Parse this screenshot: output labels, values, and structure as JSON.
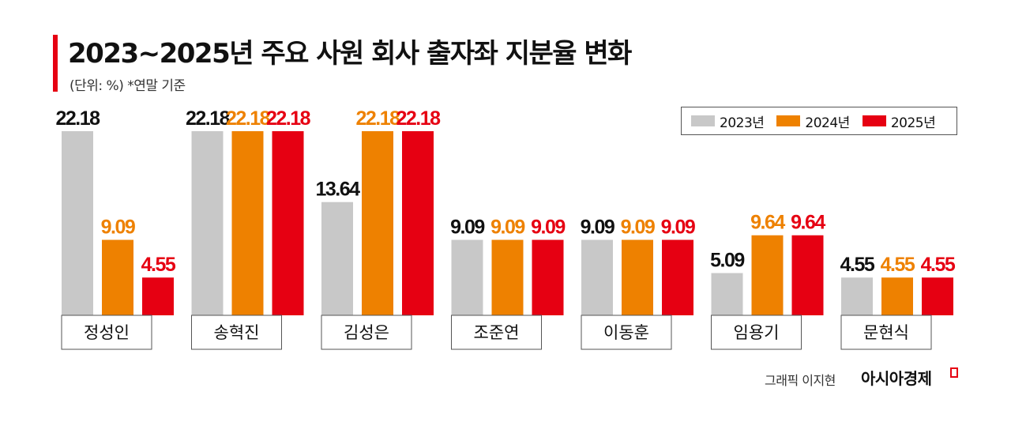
{
  "header": {
    "title": "2023~2025년 주요 사원 회사 출자좌 지분율 변화",
    "subtitle": "(단위: %)  *연말 기준"
  },
  "legend": {
    "items": [
      {
        "label": "2023년",
        "color": "#c8c8c8"
      },
      {
        "label": "2024년",
        "color": "#ee8100"
      },
      {
        "label": "2025년",
        "color": "#e60012"
      }
    ]
  },
  "footer": {
    "credit": "그래픽 이지현",
    "brand": "아시아경제"
  },
  "chart_data": {
    "type": "bar",
    "categories": [
      "정성인",
      "송혁진",
      "김성은",
      "조준연",
      "이동훈",
      "임용기",
      "문현식"
    ],
    "series": [
      {
        "name": "2023년",
        "color": "#c8c8c8",
        "label_color": "#111111",
        "values": [
          22.18,
          22.18,
          13.64,
          9.09,
          9.09,
          5.09,
          4.55
        ]
      },
      {
        "name": "2024년",
        "color": "#ee8100",
        "label_color": "#ee8100",
        "values": [
          9.09,
          22.18,
          22.18,
          9.09,
          9.09,
          9.64,
          4.55
        ]
      },
      {
        "name": "2025년",
        "color": "#e60012",
        "label_color": "#e60012",
        "values": [
          4.55,
          22.18,
          22.18,
          9.09,
          9.09,
          9.64,
          4.55
        ]
      }
    ],
    "data_labels": [
      [
        "22.18",
        "9.09",
        "4.55"
      ],
      [
        "22.18",
        "22.18",
        "22.18"
      ],
      [
        "13.64",
        "22.18",
        "22.18"
      ],
      [
        "9.09",
        "9.09",
        "9.09"
      ],
      [
        "9.09",
        "9.09",
        "9.09"
      ],
      [
        "5.09",
        "9.64",
        "9.64"
      ],
      [
        "4.55",
        "4.55",
        "4.55"
      ]
    ],
    "ylim": [
      0,
      22.18
    ],
    "grid": false,
    "legend_position": "top-right"
  }
}
